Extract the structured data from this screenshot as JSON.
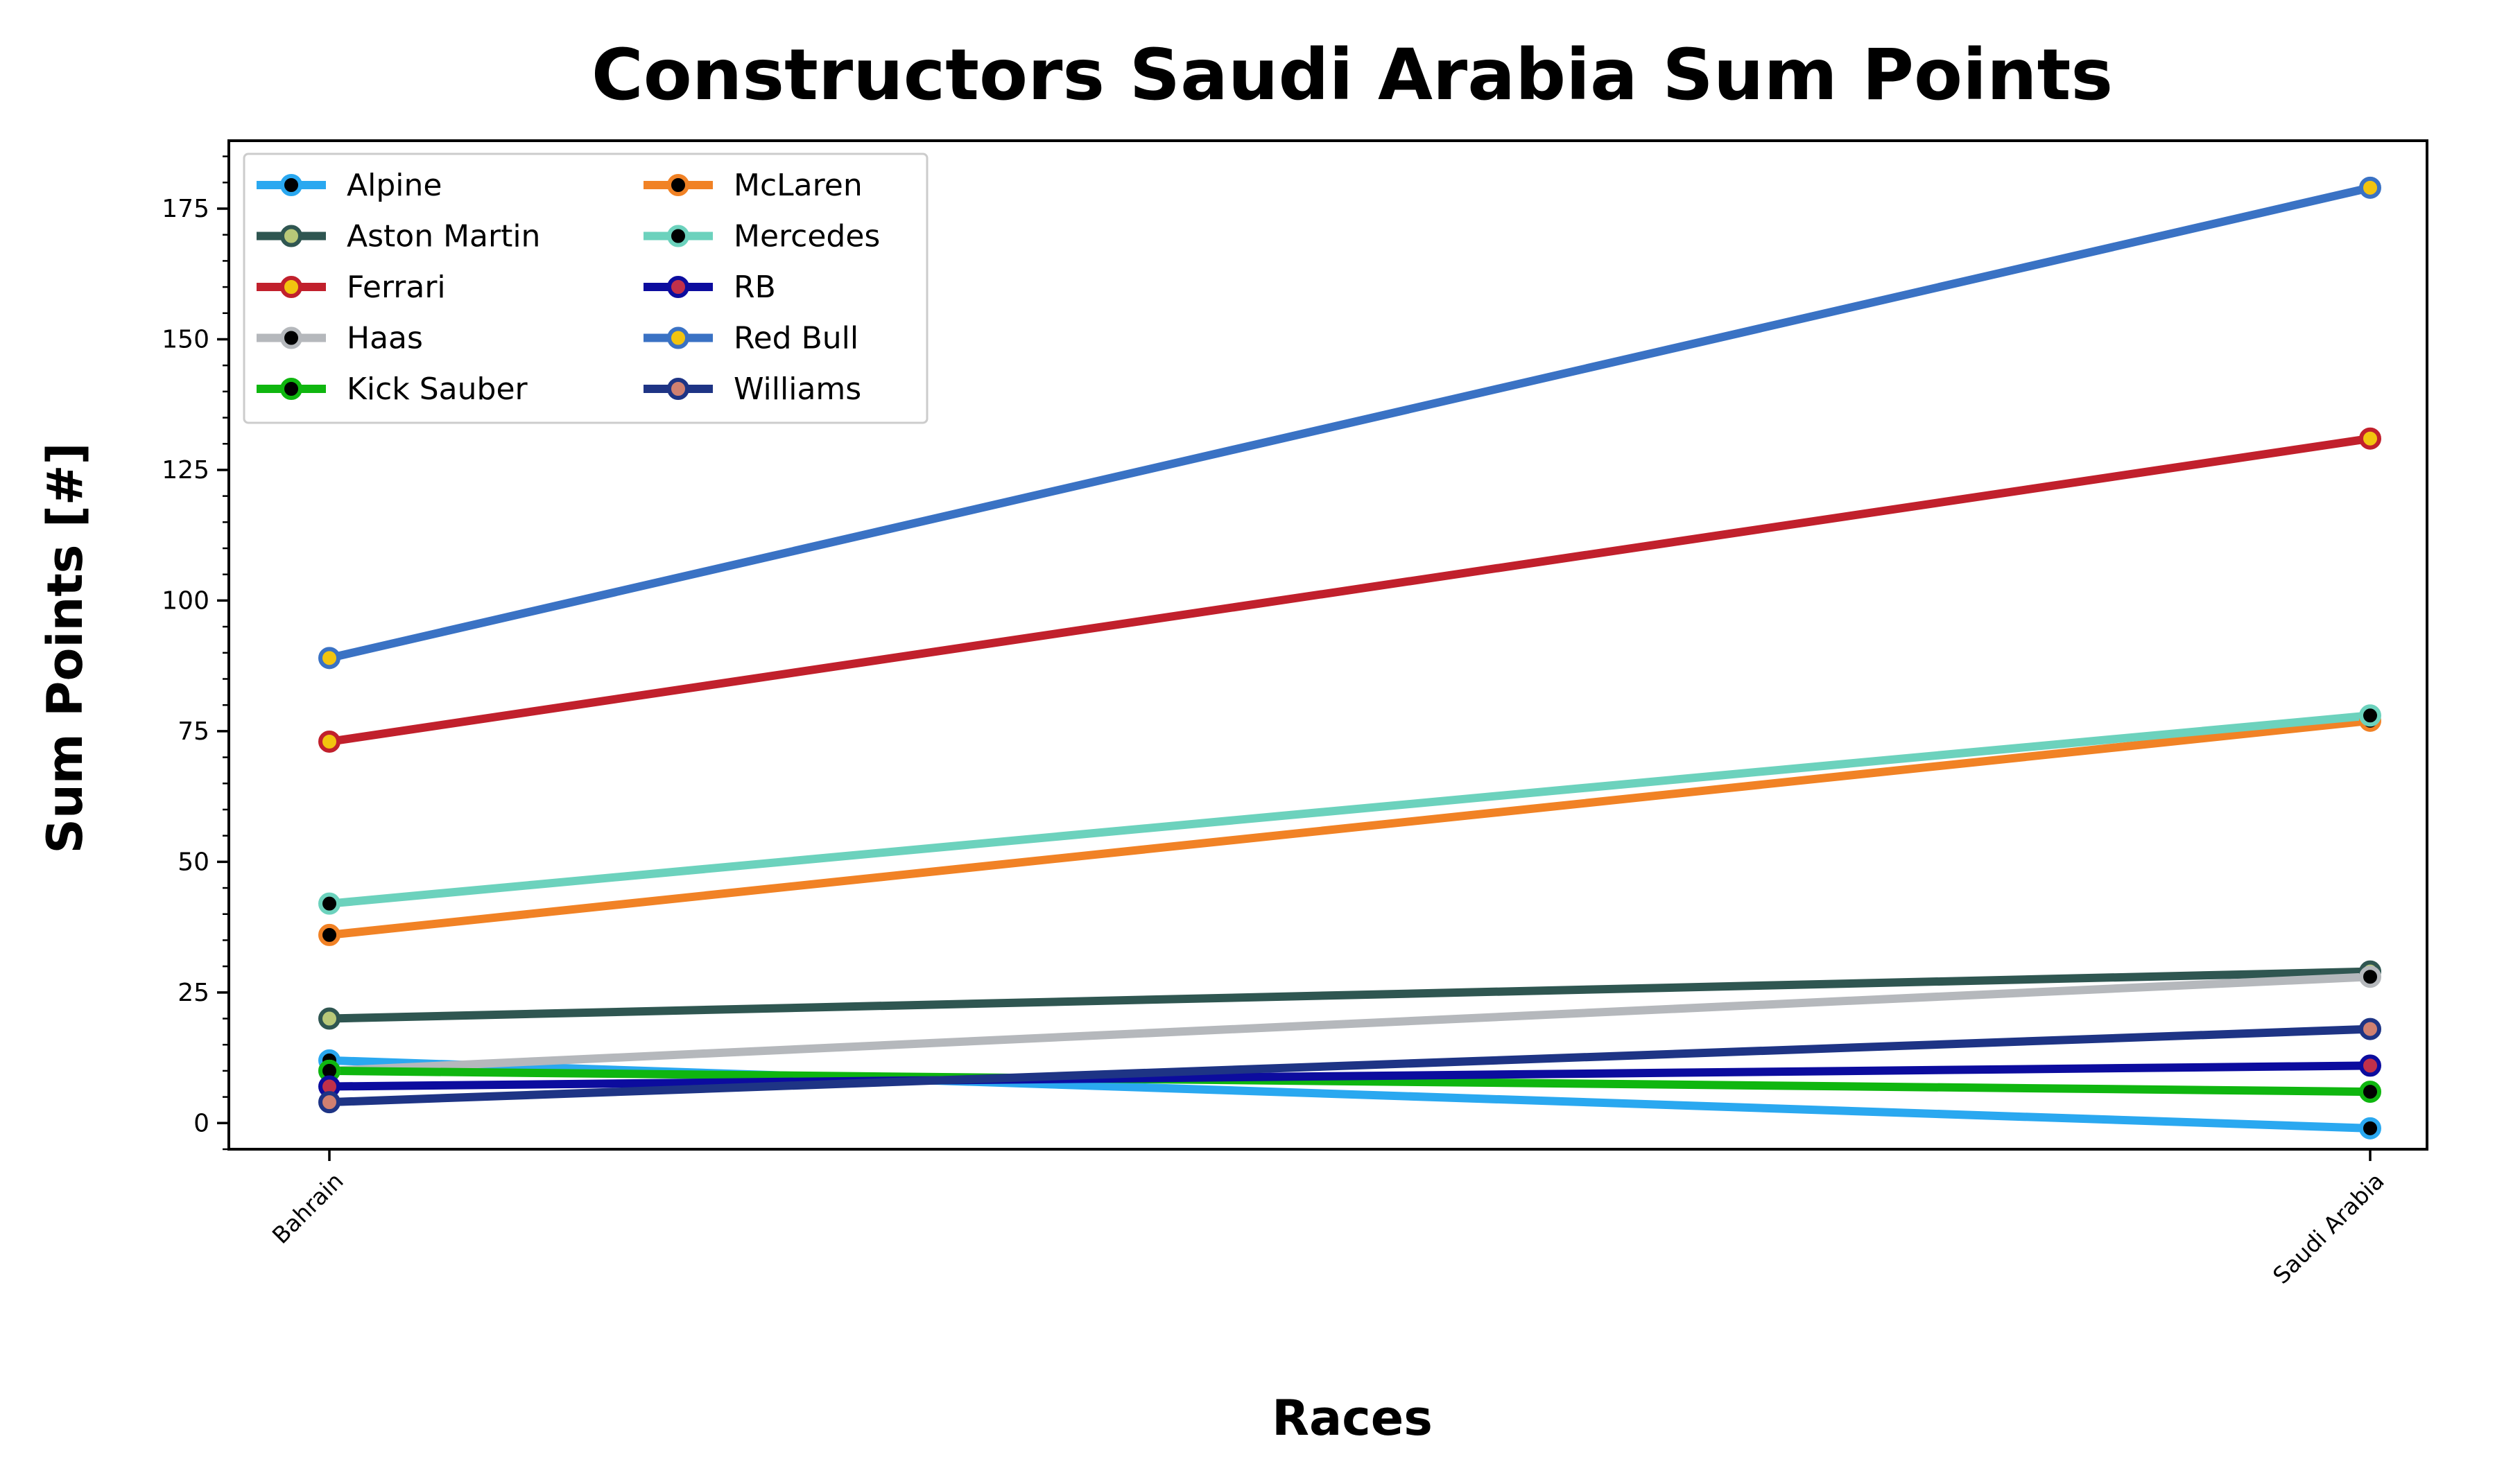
{
  "chart_data": {
    "type": "line",
    "title": "Constructors Saudi Arabia Sum Points",
    "xlabel": "Races",
    "ylabel": "Sum Points [#]",
    "categories": [
      "Bahrain",
      "Saudi Arabia"
    ],
    "ylim": [
      -5,
      188
    ],
    "yticks": [
      0,
      25,
      50,
      75,
      100,
      125,
      150,
      175
    ],
    "grid": false,
    "legend_position": "top-left",
    "legend_columns": 2,
    "series": [
      {
        "name": "Alpine",
        "values": [
          12,
          -1
        ],
        "color": "#2aa8f0",
        "marker_face": "#000000",
        "marker_edge": "#2aa8f0"
      },
      {
        "name": "Aston Martin",
        "values": [
          20,
          29
        ],
        "color": "#2f5651",
        "marker_face": "#b8c878",
        "marker_edge": "#2f5651"
      },
      {
        "name": "Ferrari",
        "values": [
          73,
          131
        ],
        "color": "#c1202c",
        "marker_face": "#f2c40f",
        "marker_edge": "#c1202c"
      },
      {
        "name": "Haas",
        "values": [
          10,
          28
        ],
        "color": "#b5b8bc",
        "marker_face": "#000000",
        "marker_edge": "#b5b8bc"
      },
      {
        "name": "Kick Sauber",
        "values": [
          10,
          6
        ],
        "color": "#0fb60f",
        "marker_face": "#000000",
        "marker_edge": "#0fb60f"
      },
      {
        "name": "McLaren",
        "values": [
          36,
          77
        ],
        "color": "#f18225",
        "marker_face": "#000000",
        "marker_edge": "#f18225"
      },
      {
        "name": "Mercedes",
        "values": [
          42,
          78
        ],
        "color": "#6cd2bd",
        "marker_face": "#000000",
        "marker_edge": "#6cd2bd"
      },
      {
        "name": "RB",
        "values": [
          7,
          11
        ],
        "color": "#0c0c9e",
        "marker_face": "#c1304a",
        "marker_edge": "#0c0c9e"
      },
      {
        "name": "Red Bull",
        "values": [
          89,
          179
        ],
        "color": "#3a72c4",
        "marker_face": "#f2c40f",
        "marker_edge": "#3a72c4"
      },
      {
        "name": "Williams",
        "values": [
          4,
          18
        ],
        "color": "#1e3485",
        "marker_face": "#d08070",
        "marker_edge": "#1e3485"
      }
    ]
  }
}
